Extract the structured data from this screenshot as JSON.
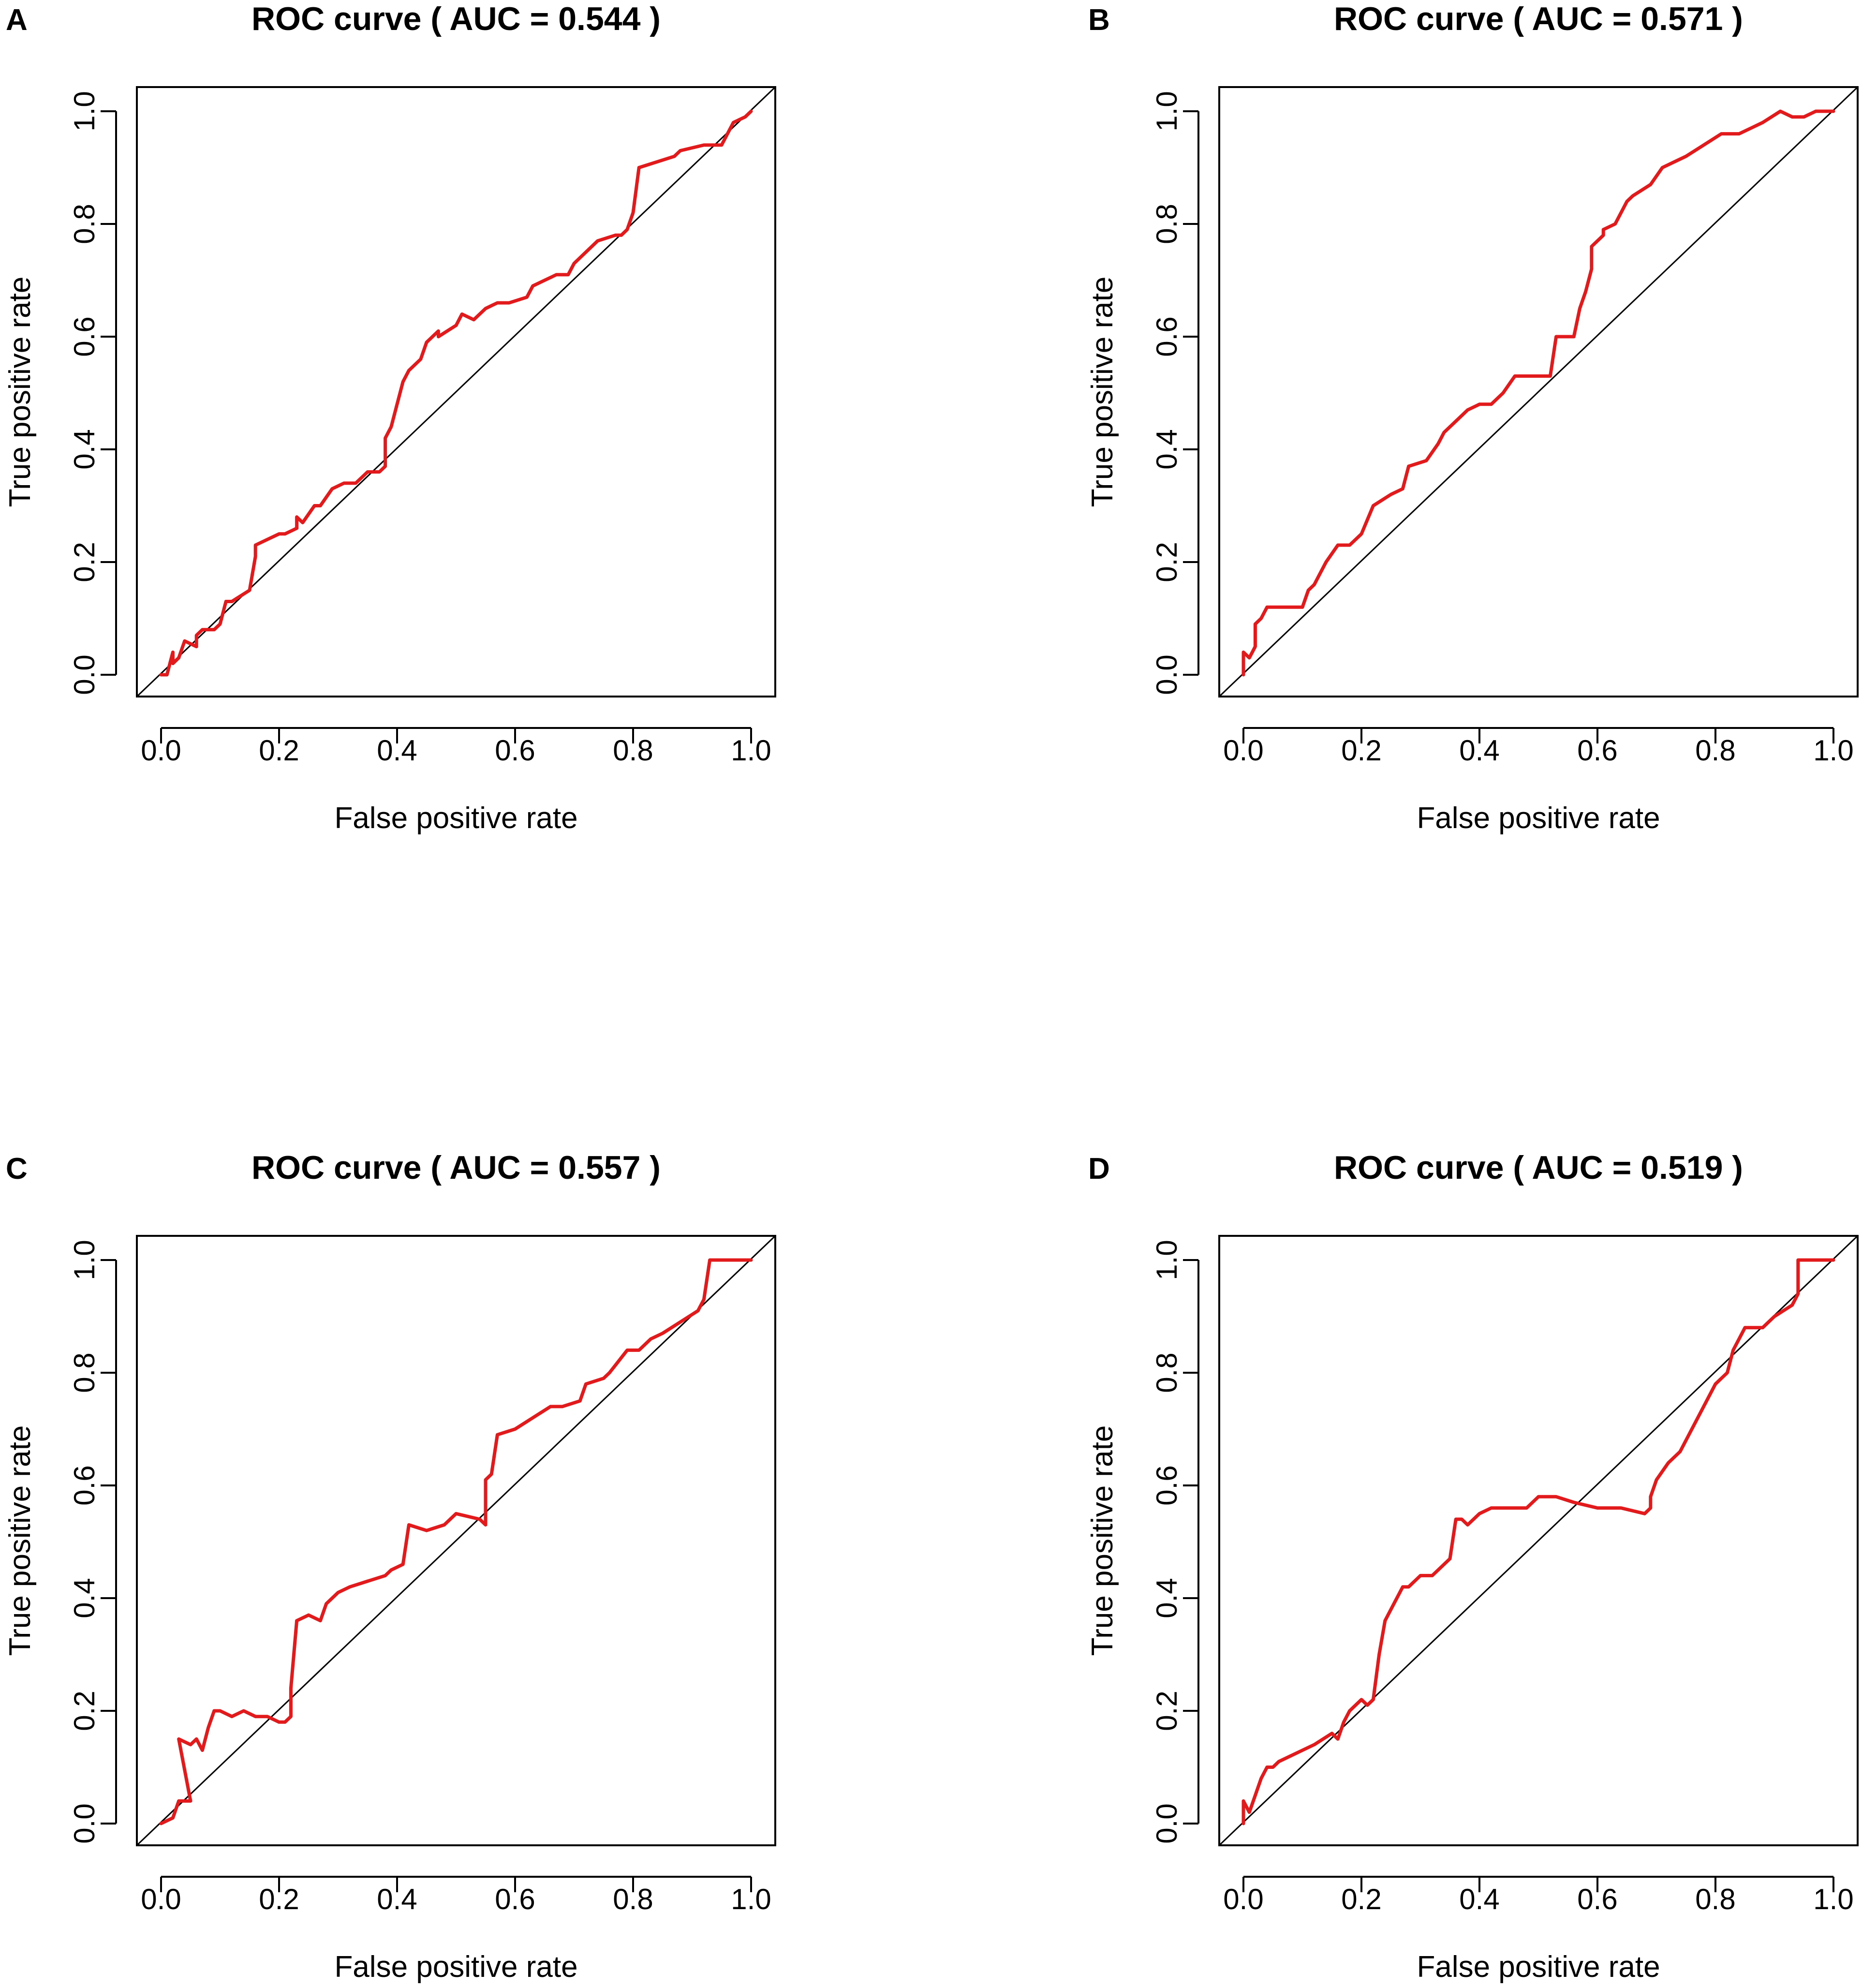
{
  "chart_data": [
    {
      "panel": "A",
      "type": "line",
      "title": "ROC curve ( AUC =  0.544 )",
      "xlabel": "False positive rate",
      "ylabel": "True positive rate",
      "xlim": [
        0,
        1
      ],
      "ylim": [
        0,
        1
      ],
      "xticks": [
        "0.0",
        "0.2",
        "0.4",
        "0.6",
        "0.8",
        "1.0"
      ],
      "yticks": [
        "0.0",
        "0.2",
        "0.4",
        "0.6",
        "0.8",
        "1.0"
      ],
      "line_color": "#e31a1c",
      "reference_color": "#000000",
      "series": [
        {
          "name": "ROC",
          "x": [
            0.0,
            0.01,
            0.02,
            0.02,
            0.03,
            0.04,
            0.06,
            0.06,
            0.07,
            0.09,
            0.1,
            0.11,
            0.12,
            0.15,
            0.16,
            0.16,
            0.18,
            0.2,
            0.21,
            0.23,
            0.23,
            0.24,
            0.26,
            0.27,
            0.29,
            0.31,
            0.33,
            0.35,
            0.36,
            0.37,
            0.38,
            0.38,
            0.39,
            0.4,
            0.41,
            0.42,
            0.44,
            0.45,
            0.47,
            0.47,
            0.5,
            0.51,
            0.53,
            0.55,
            0.57,
            0.59,
            0.62,
            0.63,
            0.65,
            0.67,
            0.69,
            0.7,
            0.74,
            0.77,
            0.78,
            0.79,
            0.8,
            0.81,
            0.87,
            0.88,
            0.92,
            0.95,
            0.97,
            0.99,
            1.0
          ],
          "y": [
            0.0,
            0.0,
            0.04,
            0.02,
            0.03,
            0.06,
            0.05,
            0.07,
            0.08,
            0.08,
            0.09,
            0.13,
            0.13,
            0.15,
            0.21,
            0.23,
            0.24,
            0.25,
            0.25,
            0.26,
            0.28,
            0.27,
            0.3,
            0.3,
            0.33,
            0.34,
            0.34,
            0.36,
            0.36,
            0.36,
            0.37,
            0.42,
            0.44,
            0.48,
            0.52,
            0.54,
            0.56,
            0.59,
            0.61,
            0.6,
            0.62,
            0.64,
            0.63,
            0.65,
            0.66,
            0.66,
            0.67,
            0.69,
            0.7,
            0.71,
            0.71,
            0.73,
            0.77,
            0.78,
            0.78,
            0.79,
            0.82,
            0.9,
            0.92,
            0.93,
            0.94,
            0.94,
            0.98,
            0.99,
            1.0
          ]
        }
      ]
    },
    {
      "panel": "B",
      "type": "line",
      "title": "ROC curve ( AUC =  0.571 )",
      "xlabel": "False positive rate",
      "ylabel": "True positive rate",
      "xlim": [
        0,
        1
      ],
      "ylim": [
        0,
        1
      ],
      "xticks": [
        "0.0",
        "0.2",
        "0.4",
        "0.6",
        "0.8",
        "1.0"
      ],
      "yticks": [
        "0.0",
        "0.2",
        "0.4",
        "0.6",
        "0.8",
        "1.0"
      ],
      "line_color": "#e31a1c",
      "reference_color": "#000000",
      "series": [
        {
          "name": "ROC",
          "x": [
            0.0,
            0.0,
            0.01,
            0.02,
            0.02,
            0.03,
            0.04,
            0.05,
            0.07,
            0.1,
            0.11,
            0.12,
            0.14,
            0.16,
            0.18,
            0.2,
            0.22,
            0.22,
            0.25,
            0.27,
            0.28,
            0.31,
            0.33,
            0.34,
            0.36,
            0.38,
            0.4,
            0.42,
            0.44,
            0.46,
            0.48,
            0.5,
            0.52,
            0.53,
            0.53,
            0.56,
            0.57,
            0.58,
            0.59,
            0.59,
            0.61,
            0.61,
            0.63,
            0.65,
            0.66,
            0.69,
            0.71,
            0.73,
            0.75,
            0.78,
            0.81,
            0.84,
            0.86,
            0.88,
            0.91,
            0.93,
            0.95,
            0.97,
            1.0
          ],
          "y": [
            0.0,
            0.04,
            0.03,
            0.05,
            0.09,
            0.1,
            0.12,
            0.12,
            0.12,
            0.12,
            0.15,
            0.16,
            0.2,
            0.23,
            0.23,
            0.25,
            0.3,
            0.3,
            0.32,
            0.33,
            0.37,
            0.38,
            0.41,
            0.43,
            0.45,
            0.47,
            0.48,
            0.48,
            0.5,
            0.53,
            0.53,
            0.53,
            0.53,
            0.6,
            0.6,
            0.6,
            0.65,
            0.68,
            0.72,
            0.76,
            0.78,
            0.79,
            0.8,
            0.84,
            0.85,
            0.87,
            0.9,
            0.91,
            0.92,
            0.94,
            0.96,
            0.96,
            0.97,
            0.98,
            1.0,
            0.99,
            0.99,
            1.0,
            1.0
          ]
        }
      ]
    },
    {
      "panel": "C",
      "type": "line",
      "title": "ROC curve ( AUC =  0.557 )",
      "xlabel": "False positive rate",
      "ylabel": "True positive rate",
      "xlim": [
        0,
        1
      ],
      "ylim": [
        0,
        1
      ],
      "xticks": [
        "0.0",
        "0.2",
        "0.4",
        "0.6",
        "0.8",
        "1.0"
      ],
      "yticks": [
        "0.0",
        "0.2",
        "0.4",
        "0.6",
        "0.8",
        "1.0"
      ],
      "line_color": "#e31a1c",
      "reference_color": "#000000",
      "series": [
        {
          "name": "ROC",
          "x": [
            0.0,
            0.02,
            0.03,
            0.05,
            0.03,
            0.05,
            0.06,
            0.07,
            0.08,
            0.09,
            0.1,
            0.12,
            0.14,
            0.16,
            0.18,
            0.2,
            0.21,
            0.22,
            0.22,
            0.23,
            0.25,
            0.27,
            0.28,
            0.3,
            0.32,
            0.35,
            0.38,
            0.39,
            0.41,
            0.42,
            0.45,
            0.48,
            0.5,
            0.54,
            0.55,
            0.55,
            0.56,
            0.57,
            0.6,
            0.63,
            0.66,
            0.68,
            0.71,
            0.72,
            0.75,
            0.76,
            0.79,
            0.81,
            0.83,
            0.85,
            0.88,
            0.91,
            0.92,
            0.93,
            0.94,
            0.97,
            1.0
          ],
          "y": [
            0.0,
            0.01,
            0.04,
            0.04,
            0.15,
            0.14,
            0.15,
            0.13,
            0.17,
            0.2,
            0.2,
            0.19,
            0.2,
            0.19,
            0.19,
            0.18,
            0.18,
            0.19,
            0.24,
            0.36,
            0.37,
            0.36,
            0.39,
            0.41,
            0.42,
            0.43,
            0.44,
            0.45,
            0.46,
            0.53,
            0.52,
            0.53,
            0.55,
            0.54,
            0.53,
            0.61,
            0.62,
            0.69,
            0.7,
            0.72,
            0.74,
            0.74,
            0.75,
            0.78,
            0.79,
            0.8,
            0.84,
            0.84,
            0.86,
            0.87,
            0.89,
            0.91,
            0.93,
            1.0,
            1.0,
            1.0,
            1.0
          ]
        }
      ]
    },
    {
      "panel": "D",
      "type": "line",
      "title": "ROC curve ( AUC =  0.519 )",
      "xlabel": "False positive rate",
      "ylabel": "True positive rate",
      "xlim": [
        0,
        1
      ],
      "ylim": [
        0,
        1
      ],
      "xticks": [
        "0.0",
        "0.2",
        "0.4",
        "0.6",
        "0.8",
        "1.0"
      ],
      "yticks": [
        "0.0",
        "0.2",
        "0.4",
        "0.6",
        "0.8",
        "1.0"
      ],
      "line_color": "#e31a1c",
      "reference_color": "#000000",
      "series": [
        {
          "name": "ROC",
          "x": [
            0.0,
            0.0,
            0.01,
            0.02,
            0.03,
            0.04,
            0.05,
            0.06,
            0.08,
            0.1,
            0.12,
            0.15,
            0.16,
            0.17,
            0.18,
            0.2,
            0.21,
            0.22,
            0.23,
            0.24,
            0.25,
            0.26,
            0.27,
            0.28,
            0.3,
            0.32,
            0.34,
            0.35,
            0.36,
            0.37,
            0.38,
            0.4,
            0.42,
            0.45,
            0.48,
            0.5,
            0.53,
            0.56,
            0.6,
            0.64,
            0.68,
            0.69,
            0.69,
            0.7,
            0.72,
            0.74,
            0.76,
            0.78,
            0.8,
            0.82,
            0.83,
            0.84,
            0.85,
            0.86,
            0.88,
            0.9,
            0.93,
            0.94,
            0.94,
            0.96,
            0.98,
            1.0
          ],
          "y": [
            0.0,
            0.04,
            0.02,
            0.05,
            0.08,
            0.1,
            0.1,
            0.11,
            0.12,
            0.13,
            0.14,
            0.16,
            0.15,
            0.18,
            0.2,
            0.22,
            0.21,
            0.22,
            0.3,
            0.36,
            0.38,
            0.4,
            0.42,
            0.42,
            0.44,
            0.44,
            0.46,
            0.47,
            0.54,
            0.54,
            0.53,
            0.55,
            0.56,
            0.56,
            0.56,
            0.58,
            0.58,
            0.57,
            0.56,
            0.56,
            0.55,
            0.56,
            0.58,
            0.61,
            0.64,
            0.66,
            0.7,
            0.74,
            0.78,
            0.8,
            0.84,
            0.86,
            0.88,
            0.88,
            0.88,
            0.9,
            0.92,
            0.94,
            1.0,
            1.0,
            1.0,
            1.0
          ]
        }
      ]
    }
  ]
}
